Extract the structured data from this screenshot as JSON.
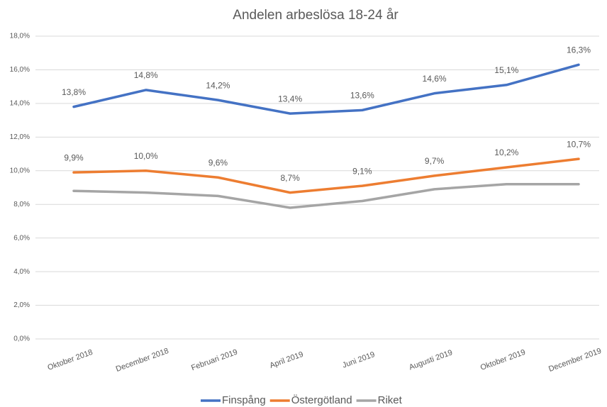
{
  "chart_data": {
    "type": "line",
    "title": "Andelen arbeslösa 18-24 år",
    "categories": [
      "Oktober 2018",
      "December 2018",
      "Februari 2019",
      "April 2019",
      "Juni 2019",
      "Augusti 2019",
      "Oktober 2019",
      "December 2019"
    ],
    "series": [
      {
        "name": "Finspång",
        "color": "#4472c4",
        "values": [
          13.8,
          14.8,
          14.2,
          13.4,
          13.6,
          14.6,
          15.1,
          16.3
        ],
        "value_labels": [
          "13,8%",
          "14,8%",
          "14,2%",
          "13,4%",
          "13,6%",
          "14,6%",
          "15,1%",
          "16,3%"
        ]
      },
      {
        "name": "Östergötland",
        "color": "#ed7d31",
        "values": [
          9.9,
          10.0,
          9.6,
          8.7,
          9.1,
          9.7,
          10.2,
          10.7
        ],
        "value_labels": [
          "9,9%",
          "10,0%",
          "9,6%",
          "8,7%",
          "9,1%",
          "9,7%",
          "10,2%",
          "10,7%"
        ]
      },
      {
        "name": "Riket",
        "color": "#a5a5a5",
        "values": [
          8.8,
          8.7,
          8.5,
          7.8,
          8.2,
          8.9,
          9.2,
          9.2
        ]
      }
    ],
    "ylim": [
      0,
      18
    ],
    "yticks": [
      {
        "value": 0,
        "label": "0,0%"
      },
      {
        "value": 2,
        "label": "2,0%"
      },
      {
        "value": 4,
        "label": "4,0%"
      },
      {
        "value": 6,
        "label": "6,0%"
      },
      {
        "value": 8,
        "label": "8,0%"
      },
      {
        "value": 10,
        "label": "10,0%"
      },
      {
        "value": 12,
        "label": "12,0%"
      },
      {
        "value": 14,
        "label": "14,0%"
      },
      {
        "value": 16,
        "label": "16,0%"
      },
      {
        "value": 18,
        "label": "18,0%"
      }
    ],
    "grid": true,
    "legend": "bottom"
  }
}
